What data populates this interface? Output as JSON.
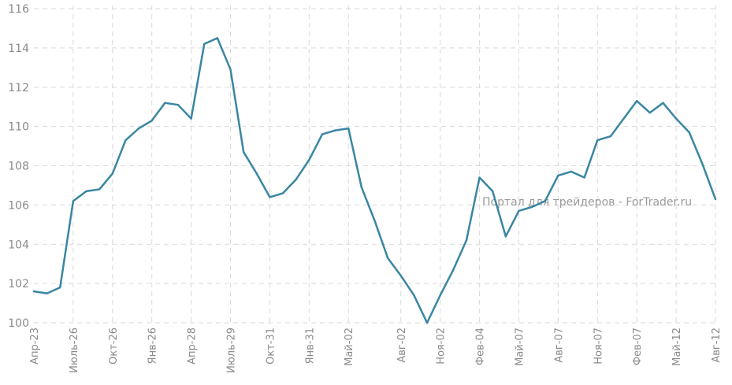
{
  "watermark": "Портал для трейдеров - ForTrader.ru",
  "colors": {
    "line": "#3a86a3",
    "grid": "#d9d9d9",
    "text": "#8a8a8a"
  },
  "chart_data": {
    "type": "line",
    "title": "",
    "xlabel": "",
    "ylabel": "",
    "ylim": [
      100,
      116
    ],
    "y_ticks": [
      100,
      102,
      104,
      106,
      108,
      110,
      112,
      114,
      116
    ],
    "grid": true,
    "x_tick_labels": [
      "Апр-23",
      "Июль-26",
      "Окт-26",
      "Янв-26",
      "Апр-28",
      "Июль-29",
      "Окт-31",
      "Янв-31",
      "Май-02",
      "Авг-02",
      "Ноя-02",
      "Фев-04",
      "Май-07",
      "Авг-07",
      "Ноя-07",
      "Фев-07",
      "Май-12",
      "Авг-12"
    ],
    "series": [
      {
        "values": [
          101.6,
          101.5,
          101.8,
          106.2,
          106.7,
          106.8,
          107.6,
          109.3,
          109.9,
          110.3,
          111.2,
          111.1,
          110.4,
          114.2,
          114.5,
          112.9,
          108.7,
          107.6,
          106.4,
          106.6,
          107.3,
          108.3,
          109.6,
          109.8,
          109.9,
          106.9,
          105.2,
          103.3,
          102.4,
          101.4,
          100.0,
          101.4,
          102.7,
          104.2,
          107.4,
          106.7,
          104.4,
          105.7,
          105.9,
          106.2,
          107.5,
          107.7,
          107.4,
          109.3,
          109.5,
          110.4,
          111.3,
          110.7,
          111.2,
          110.4,
          109.7,
          108.1,
          106.3
        ]
      }
    ]
  }
}
